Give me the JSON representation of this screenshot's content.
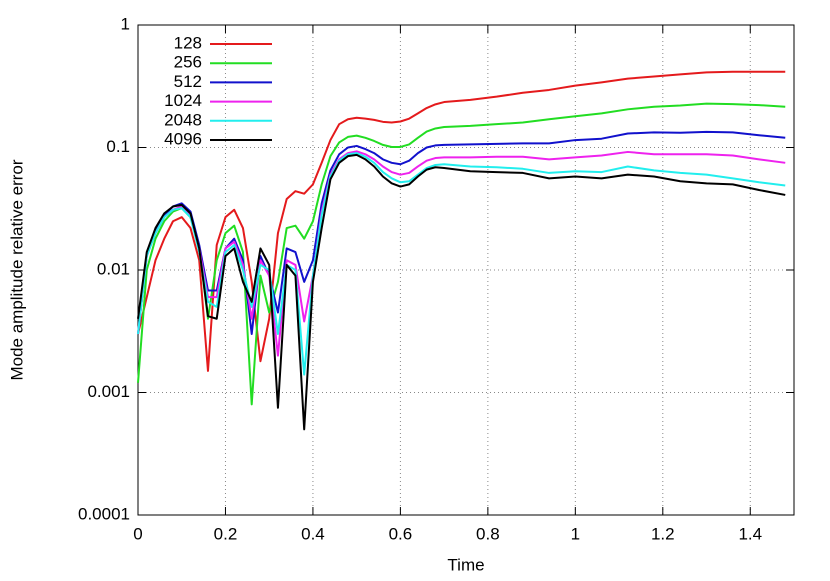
{
  "chart_data": {
    "type": "line",
    "xlabel": "Time",
    "ylabel": "Mode amplitude relative error",
    "yscale": "log",
    "grid": true,
    "legend": "top-left",
    "xlim": [
      0,
      1.5
    ],
    "xticks": [
      0,
      0.2,
      0.4,
      0.6,
      0.8,
      1,
      1.2,
      1.4
    ],
    "ylim": [
      0.0001,
      1
    ],
    "yticks": [
      0.0001,
      0.001,
      0.01,
      0.1,
      1
    ],
    "x": [
      0,
      0.02,
      0.04,
      0.06,
      0.08,
      0.1,
      0.12,
      0.14,
      0.16,
      0.18,
      0.2,
      0.22,
      0.24,
      0.26,
      0.28,
      0.3,
      0.32,
      0.34,
      0.36,
      0.38,
      0.4,
      0.42,
      0.44,
      0.46,
      0.48,
      0.5,
      0.52,
      0.54,
      0.56,
      0.58,
      0.6,
      0.62,
      0.64,
      0.66,
      0.68,
      0.7,
      0.76,
      0.82,
      0.88,
      0.94,
      1.0,
      1.06,
      1.12,
      1.18,
      1.24,
      1.3,
      1.36,
      1.42,
      1.48
    ],
    "series": [
      {
        "name": "128",
        "color": "#e41a1c",
        "values": [
          0.003,
          0.006,
          0.012,
          0.018,
          0.025,
          0.027,
          0.022,
          0.012,
          0.0015,
          0.016,
          0.027,
          0.031,
          0.022,
          0.008,
          0.0018,
          0.004,
          0.02,
          0.038,
          0.044,
          0.042,
          0.05,
          0.075,
          0.115,
          0.155,
          0.17,
          0.175,
          0.172,
          0.168,
          0.162,
          0.16,
          0.163,
          0.172,
          0.19,
          0.21,
          0.225,
          0.235,
          0.245,
          0.26,
          0.28,
          0.295,
          0.32,
          0.34,
          0.365,
          0.38,
          0.395,
          0.41,
          0.415,
          0.415,
          0.415
        ]
      },
      {
        "name": "256",
        "color": "#22dd22",
        "values": [
          0.0012,
          0.01,
          0.018,
          0.025,
          0.03,
          0.032,
          0.027,
          0.015,
          0.004,
          0.012,
          0.02,
          0.023,
          0.014,
          0.0008,
          0.009,
          0.0045,
          0.008,
          0.022,
          0.023,
          0.018,
          0.025,
          0.05,
          0.085,
          0.11,
          0.122,
          0.125,
          0.12,
          0.113,
          0.105,
          0.101,
          0.101,
          0.106,
          0.12,
          0.135,
          0.143,
          0.147,
          0.15,
          0.155,
          0.16,
          0.17,
          0.18,
          0.19,
          0.205,
          0.215,
          0.22,
          0.228,
          0.226,
          0.222,
          0.215
        ]
      },
      {
        "name": "512",
        "color": "#1111cc",
        "values": [
          0.003,
          0.013,
          0.021,
          0.028,
          0.033,
          0.035,
          0.03,
          0.016,
          0.0068,
          0.0068,
          0.015,
          0.018,
          0.012,
          0.003,
          0.013,
          0.009,
          0.0045,
          0.015,
          0.014,
          0.008,
          0.012,
          0.035,
          0.065,
          0.088,
          0.1,
          0.103,
          0.097,
          0.09,
          0.08,
          0.075,
          0.073,
          0.078,
          0.09,
          0.1,
          0.104,
          0.105,
          0.106,
          0.107,
          0.108,
          0.108,
          0.115,
          0.118,
          0.13,
          0.133,
          0.132,
          0.134,
          0.133,
          0.126,
          0.12
        ]
      },
      {
        "name": "1024",
        "color": "#ee22ee",
        "values": [
          0.003,
          0.013,
          0.02,
          0.027,
          0.031,
          0.033,
          0.028,
          0.015,
          0.006,
          0.006,
          0.015,
          0.017,
          0.011,
          0.004,
          0.012,
          0.009,
          0.002,
          0.012,
          0.011,
          0.0038,
          0.009,
          0.03,
          0.06,
          0.08,
          0.09,
          0.093,
          0.088,
          0.08,
          0.07,
          0.063,
          0.06,
          0.062,
          0.07,
          0.078,
          0.082,
          0.083,
          0.083,
          0.084,
          0.084,
          0.08,
          0.083,
          0.086,
          0.092,
          0.088,
          0.088,
          0.088,
          0.086,
          0.08,
          0.075
        ]
      },
      {
        "name": "2048",
        "color": "#22eeee",
        "values": [
          0.003,
          0.013,
          0.02,
          0.027,
          0.031,
          0.032,
          0.027,
          0.014,
          0.0055,
          0.005,
          0.014,
          0.016,
          0.01,
          0.005,
          0.011,
          0.01,
          0.003,
          0.011,
          0.01,
          0.0014,
          0.009,
          0.028,
          0.058,
          0.078,
          0.088,
          0.09,
          0.084,
          0.075,
          0.063,
          0.056,
          0.052,
          0.053,
          0.06,
          0.068,
          0.072,
          0.073,
          0.07,
          0.069,
          0.067,
          0.062,
          0.064,
          0.063,
          0.07,
          0.065,
          0.062,
          0.06,
          0.056,
          0.052,
          0.049
        ]
      },
      {
        "name": "4096",
        "color": "#000000",
        "values": [
          0.004,
          0.014,
          0.022,
          0.029,
          0.033,
          0.034,
          0.029,
          0.015,
          0.0042,
          0.004,
          0.013,
          0.015,
          0.008,
          0.0055,
          0.015,
          0.011,
          0.00075,
          0.011,
          0.009,
          0.0005,
          0.008,
          0.022,
          0.055,
          0.075,
          0.085,
          0.087,
          0.08,
          0.07,
          0.058,
          0.051,
          0.048,
          0.05,
          0.058,
          0.066,
          0.069,
          0.068,
          0.064,
          0.063,
          0.062,
          0.056,
          0.058,
          0.056,
          0.06,
          0.058,
          0.053,
          0.051,
          0.05,
          0.045,
          0.041
        ]
      }
    ]
  }
}
